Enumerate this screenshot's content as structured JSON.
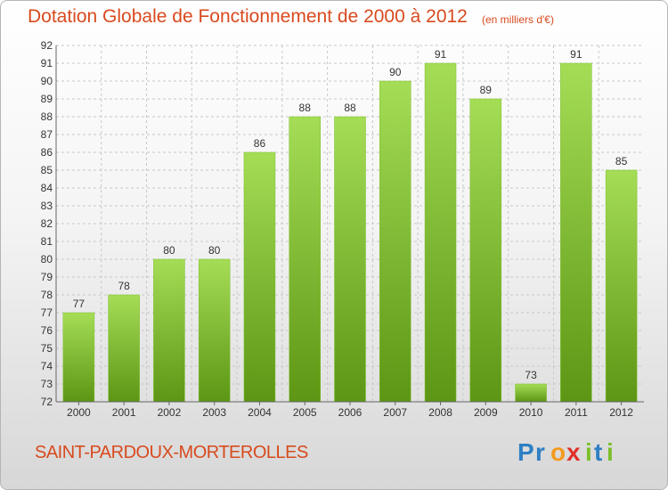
{
  "title": "Dotation Globale de Fonctionnement de 2000 à 2012",
  "subtitle": "(en milliers d'€)",
  "commune": "SAINT-PARDOUX-MORTEROLLES",
  "logo": {
    "text": "Proxiti",
    "letters": [
      "P",
      "r",
      "o",
      "x",
      "i",
      "t",
      "i"
    ],
    "colors": [
      "#2e7fc4",
      "#2e7fc4",
      "#f39a1e",
      "#e0302a",
      "#7bbf2a",
      "#2e7fc4",
      "#7bbf2a"
    ]
  },
  "colors": {
    "bar_light": "#a5dd56",
    "bar_dark": "#5c9614",
    "title": "#d84a1e",
    "grid": "#c8c8c8"
  },
  "chart_data": {
    "type": "bar",
    "title": "Dotation Globale de Fonctionnement de 2000 à 2012",
    "subtitle": "(en milliers d'€)",
    "categories": [
      "2000",
      "2001",
      "2002",
      "2003",
      "2004",
      "2005",
      "2006",
      "2007",
      "2008",
      "2009",
      "2010",
      "2011",
      "2012"
    ],
    "values": [
      77,
      78,
      80,
      80,
      86,
      88,
      88,
      90,
      91,
      89,
      73,
      91,
      85
    ],
    "ylim": [
      72,
      92
    ],
    "yticks": [
      72,
      73,
      74,
      75,
      76,
      77,
      78,
      79,
      80,
      81,
      82,
      83,
      84,
      85,
      86,
      87,
      88,
      89,
      90,
      91,
      92
    ],
    "grid": true,
    "data_labels": true
  }
}
